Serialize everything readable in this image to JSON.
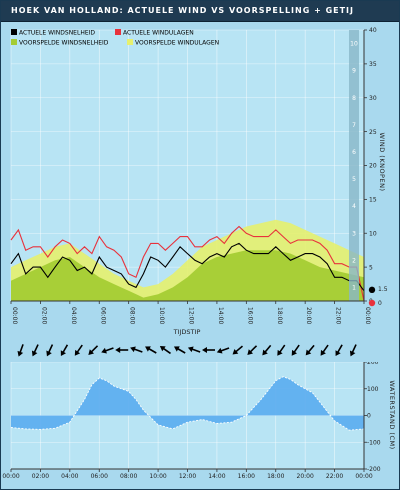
{
  "header": {
    "title": "Hoek van Holland: Actuele wind vs voorspelling + getij"
  },
  "colors": {
    "actual_speed": "#000000",
    "actual_gust": "#e8323c",
    "forecast_speed": "#a4cc34",
    "forecast_gust": "#e6f06e",
    "tide_fill": "#5aacf0",
    "plot_bg": "#b8e4f4",
    "beaufort_band": "#88b6c8",
    "arrow": "#000000"
  },
  "wind_chart": {
    "chart_data": {
      "type": "area",
      "title": "",
      "xlabel": "TIJDSTIP",
      "ylabel": "WIND (KNOPEN)",
      "ylim": [
        0,
        40
      ],
      "y_ticks": [
        0,
        5,
        10,
        15,
        20,
        25,
        30,
        35,
        40
      ],
      "x_tick_labels": [
        "00:00",
        "02:00",
        "04:00",
        "06:00",
        "08:00",
        "10:00",
        "12:00",
        "14:00",
        "16:00",
        "18:00",
        "20:00",
        "22:00",
        "00:00"
      ],
      "xlim_hours": [
        0,
        24
      ],
      "grid": true,
      "legend_position": "top-left",
      "beaufort_scale": [
        "1",
        "2",
        "3",
        "4",
        "5",
        "6",
        "7",
        "8",
        "9",
        "10"
      ],
      "current_values": {
        "gust": 0,
        "speed": 1.5
      },
      "series": [
        {
          "name": "ACTUELE WINDSNELHEID",
          "role": "actual_speed",
          "x": [
            0,
            0.5,
            1,
            1.5,
            2,
            2.5,
            3,
            3.5,
            4,
            4.5,
            5,
            5.5,
            6,
            6.5,
            7,
            7.5,
            8,
            8.5,
            9,
            9.5,
            10,
            10.5,
            11,
            11.5,
            12,
            12.5,
            13,
            13.5,
            14,
            14.5,
            15,
            15.5,
            16,
            16.5,
            17,
            17.5,
            18,
            18.5,
            19,
            19.5,
            20,
            20.5,
            21,
            21.5,
            22,
            22.5,
            23,
            23.5,
            24
          ],
          "y": [
            5.5,
            7,
            4,
            5,
            5,
            3.5,
            5,
            6.5,
            6,
            4.5,
            5,
            4,
            6.5,
            5,
            4.5,
            4,
            2.5,
            2,
            4,
            6.5,
            6,
            5,
            6.5,
            8,
            7,
            6,
            5.5,
            6.5,
            7,
            6.5,
            8,
            8.5,
            7.5,
            7,
            7,
            7,
            8,
            7,
            6,
            6.5,
            7,
            7,
            6.5,
            5.5,
            3.5,
            3.5,
            3,
            3,
            1.5
          ]
        },
        {
          "name": "ACTUELE WINDULAGEN",
          "role": "actual_gust",
          "x": [
            0,
            0.5,
            1,
            1.5,
            2,
            2.5,
            3,
            3.5,
            4,
            4.5,
            5,
            5.5,
            6,
            6.5,
            7,
            7.5,
            8,
            8.5,
            9,
            9.5,
            10,
            10.5,
            11,
            11.5,
            12,
            12.5,
            13,
            13.5,
            14,
            14.5,
            15,
            15.5,
            16,
            16.5,
            17,
            17.5,
            18,
            18.5,
            19,
            19.5,
            20,
            20.5,
            21,
            21.5,
            22,
            22.5,
            23,
            23.5,
            24
          ],
          "y": [
            9,
            10.5,
            7.5,
            8,
            8,
            6.5,
            8,
            9,
            8.5,
            7,
            8,
            7,
            9.5,
            8,
            7.5,
            6.5,
            4,
            3.5,
            6.5,
            8.5,
            8.5,
            7.5,
            8.5,
            9.5,
            9.5,
            8,
            8,
            9,
            9.5,
            8.5,
            10,
            11,
            10,
            9.5,
            9.5,
            9.5,
            10.5,
            9.5,
            8.5,
            9,
            9,
            9,
            8.5,
            7.5,
            5.5,
            5.5,
            5,
            5,
            0
          ]
        },
        {
          "name": "VOORSPELDE WINDSNELHEID",
          "role": "forecast_speed",
          "x": [
            0,
            1,
            2,
            3,
            4,
            5,
            6,
            7,
            8,
            9,
            10,
            11,
            12,
            13,
            14,
            15,
            16,
            17,
            18,
            19,
            20,
            21,
            22,
            23,
            24
          ],
          "y": [
            3,
            4,
            5,
            6,
            6.5,
            5,
            3.5,
            2.5,
            1.5,
            0.5,
            1,
            2,
            3.5,
            5.5,
            6.5,
            7,
            7.5,
            7.5,
            7.5,
            7,
            6,
            5,
            4.5,
            4,
            3.5
          ]
        },
        {
          "name": "VOORSPELDE WINDULAGEN",
          "role": "forecast_gust",
          "x": [
            0,
            1,
            2,
            3,
            4,
            5,
            6,
            7,
            8,
            9,
            10,
            11,
            12,
            13,
            14,
            15,
            16,
            17,
            18,
            19,
            20,
            21,
            22,
            23,
            24
          ],
          "y": [
            5,
            6,
            7,
            8,
            8.5,
            7,
            5.5,
            4,
            3,
            2,
            2.5,
            4,
            6,
            8,
            9,
            10,
            11,
            11.5,
            12,
            11.5,
            10.5,
            9.5,
            8.5,
            7.5,
            6.5
          ]
        }
      ]
    }
  },
  "wind_directions": {
    "description_values": "arrow rotations in degrees (0 = pointing up)",
    "rotations": [
      200,
      205,
      205,
      210,
      215,
      225,
      250,
      270,
      290,
      300,
      305,
      300,
      290,
      270,
      250,
      230,
      225,
      220,
      215,
      215,
      220,
      215,
      210,
      205
    ]
  },
  "tide_chart": {
    "chart_data": {
      "type": "area",
      "title": "",
      "xlabel": "",
      "ylabel": "WATERSTAND (CM)",
      "ylim": [
        -200,
        200
      ],
      "y_ticks": [
        -200,
        -100,
        0,
        100,
        200
      ],
      "x_tick_labels": [
        "00:00",
        "02:00",
        "04:00",
        "06:00",
        "08:00",
        "10:00",
        "12:00",
        "14:00",
        "16:00",
        "18:00",
        "20:00",
        "22:00",
        "00:00"
      ],
      "xlim_hours": [
        0,
        24
      ],
      "grid": true,
      "series": [
        {
          "name": "",
          "x": [
            0,
            1,
            2,
            3,
            4,
            5,
            5.5,
            6,
            6.5,
            7,
            7.5,
            8,
            8.5,
            9,
            10,
            11,
            12,
            13,
            14,
            15,
            16,
            17,
            18,
            18.5,
            19,
            19.5,
            20,
            20.5,
            21,
            22,
            23,
            24
          ],
          "y": [
            -45,
            -50,
            -52,
            -48,
            -25,
            60,
            115,
            140,
            130,
            110,
            100,
            90,
            60,
            20,
            -35,
            -50,
            -25,
            -15,
            -30,
            -25,
            0,
            60,
            130,
            145,
            135,
            115,
            100,
            85,
            50,
            -20,
            -55,
            -50
          ]
        }
      ]
    }
  }
}
